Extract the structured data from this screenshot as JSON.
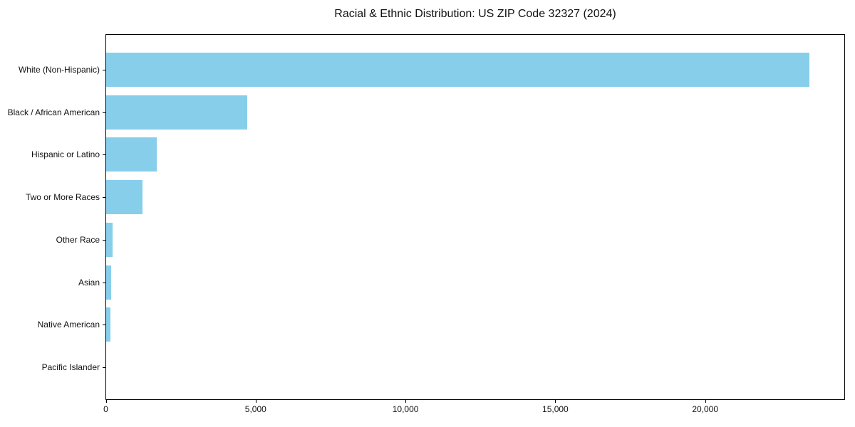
{
  "figure": {
    "background": "#ffffff"
  },
  "chart_data": {
    "type": "bar",
    "orientation": "horizontal",
    "title": "Racial & Ethnic Distribution: US ZIP Code 32327 (2024)",
    "categories": [
      "White (Non-Hispanic)",
      "Black / African American",
      "Hispanic or Latino",
      "Two or More Races",
      "Other Race",
      "Asian",
      "Native American",
      "Pacific Islander"
    ],
    "values": [
      23500,
      4720,
      1690,
      1210,
      220,
      175,
      150,
      0
    ],
    "xlabel": "",
    "ylabel": "",
    "xlim": [
      0,
      24656
    ],
    "xticks": [
      0,
      5000,
      10000,
      15000,
      20000
    ],
    "xtick_labels": [
      "0",
      "5,000",
      "10,000",
      "15,000",
      "20,000"
    ],
    "bar_color": "#87CEEB",
    "axis_color": "#000000",
    "text_color": "#111111",
    "grid": false,
    "legend": null
  }
}
